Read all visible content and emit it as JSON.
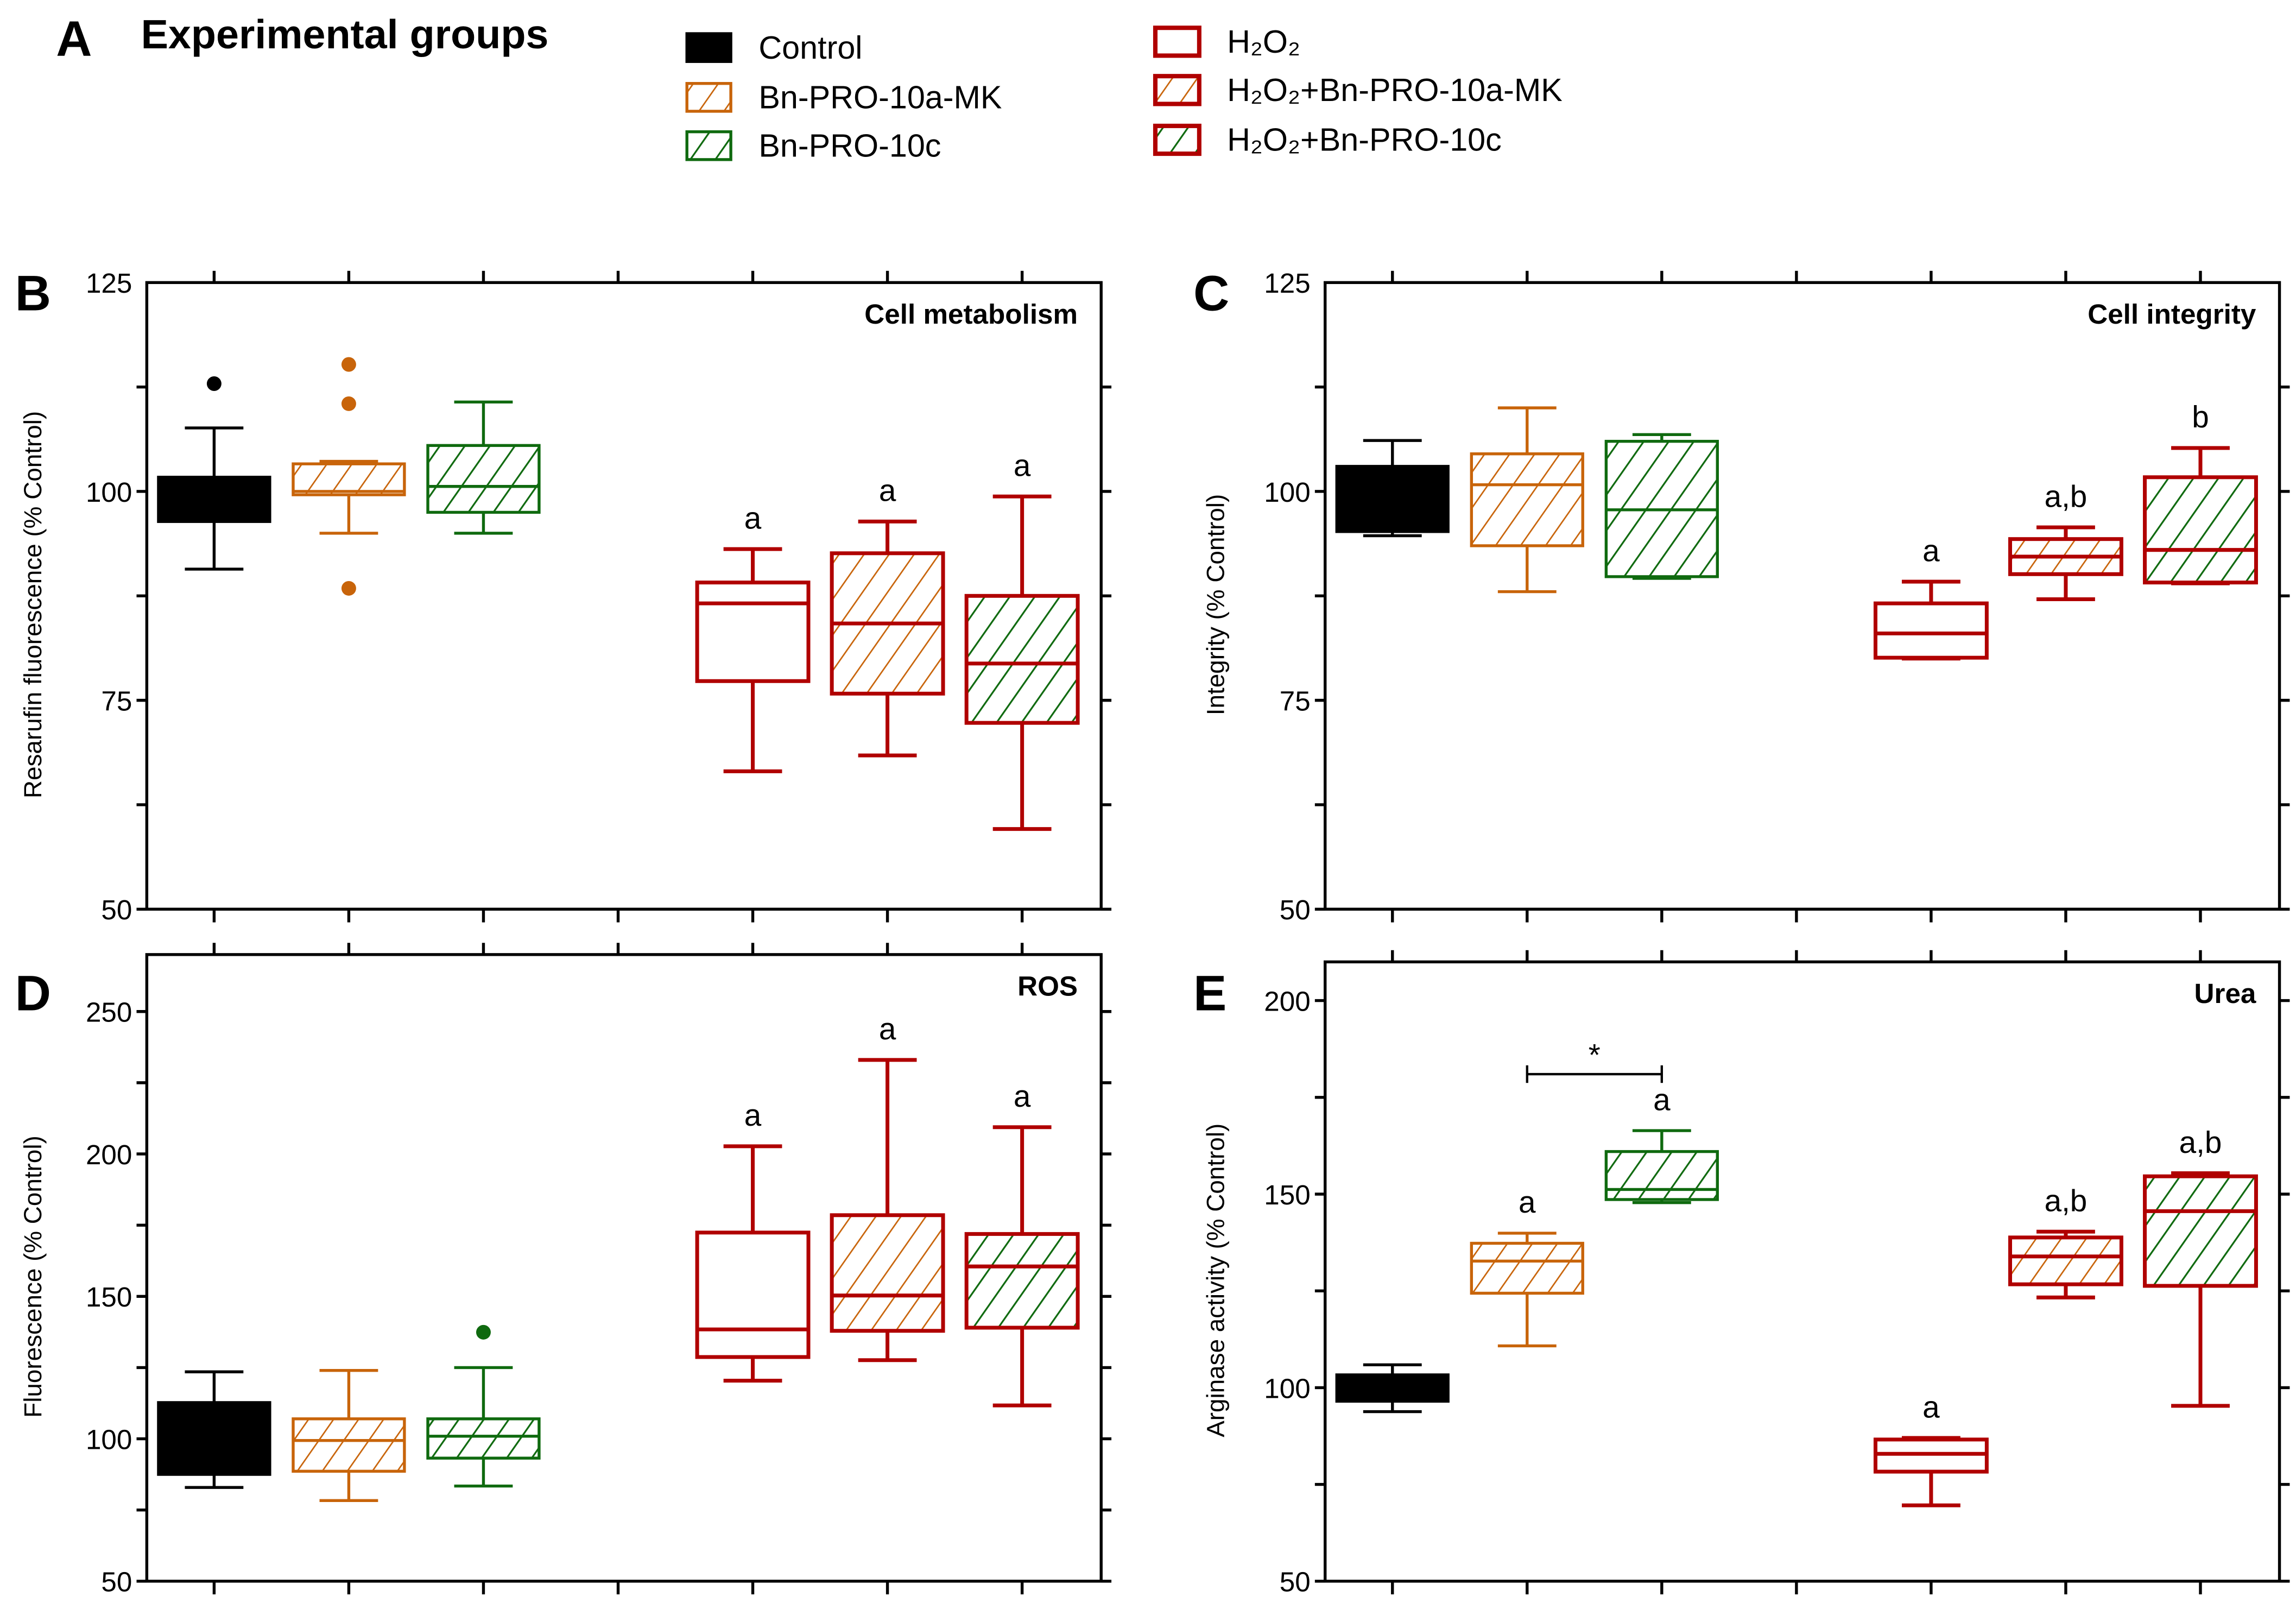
{
  "figure": {
    "panel_a_letter": "A",
    "panel_a_title": "Experimental groups"
  },
  "legend": [
    {
      "label": "Control",
      "fill": "solid",
      "color": "#000000",
      "border": "#000000"
    },
    {
      "label": "Bn-PRO-10a-MK",
      "fill": "hatch",
      "color": "#c8640a",
      "border": "#c8640a"
    },
    {
      "label": "Bn-PRO-10c",
      "fill": "hatch",
      "color": "#0f6a0f",
      "border": "#0f6a0f"
    },
    {
      "label": "H₂O₂",
      "fill": "none",
      "color": "#b00000",
      "border": "#b00000"
    },
    {
      "label": "H₂O₂+Bn-PRO-10a-MK",
      "fill": "hatch",
      "color": "#c8640a",
      "border": "#b00000"
    },
    {
      "label": "H₂O₂+Bn-PRO-10c",
      "fill": "hatch",
      "color": "#0f6a0f",
      "border": "#b00000"
    }
  ],
  "chart_data": [
    {
      "type": "box",
      "panel": "B",
      "title": "Cell metabolism",
      "ylabel": "Resarufin fluorescence (% Control)",
      "ylim": [
        50,
        125
      ],
      "yticks": [
        50,
        75,
        100,
        125
      ],
      "minor_step": 12.5,
      "groups": [
        {
          "name": "Control",
          "whisker_low": 90.7,
          "q1": 96.4,
          "median": 99,
          "q3": 101.7,
          "whisker_high": 107.6,
          "outliers": [
            112.9
          ],
          "label": ""
        },
        {
          "name": "Bn-PRO-10a-MK",
          "whisker_low": 95,
          "q1": 99.6,
          "median": 100,
          "q3": 103.3,
          "whisker_high": 103.6,
          "outliers": [
            115.2,
            110.5,
            88.4
          ],
          "label": ""
        },
        {
          "name": "Bn-PRO-10c",
          "whisker_low": 95,
          "q1": 97.5,
          "median": 100.6,
          "q3": 105.5,
          "whisker_high": 110.7,
          "outliers": [],
          "label": ""
        },
        {
          "name": "H₂O₂",
          "whisker_low": 66.5,
          "q1": 77.3,
          "median": 86.6,
          "q3": 89.1,
          "whisker_high": 93.1,
          "outliers": [],
          "label": "a"
        },
        {
          "name": "H₂O₂+Bn-PRO-10a-MK",
          "whisker_low": 68.4,
          "q1": 75.8,
          "median": 84.2,
          "q3": 92.6,
          "whisker_high": 96.4,
          "outliers": [],
          "label": "a"
        },
        {
          "name": "H₂O₂+Bn-PRO-10c",
          "whisker_low": 59.6,
          "q1": 72.3,
          "median": 79.4,
          "q3": 87.5,
          "whisker_high": 99.4,
          "outliers": [],
          "label": "a"
        }
      ]
    },
    {
      "type": "box",
      "panel": "C",
      "title": "Cell integrity",
      "ylabel": "Integrity (% Control)",
      "ylim": [
        50,
        125
      ],
      "yticks": [
        50,
        75,
        100,
        125
      ],
      "minor_step": 12.5,
      "groups": [
        {
          "name": "Control",
          "whisker_low": 94.7,
          "q1": 95.2,
          "median": 99,
          "q3": 103,
          "whisker_high": 106.1,
          "outliers": [],
          "label": ""
        },
        {
          "name": "Bn-PRO-10a-MK",
          "whisker_low": 88,
          "q1": 93.5,
          "median": 100.8,
          "q3": 104.5,
          "whisker_high": 110,
          "outliers": [],
          "label": ""
        },
        {
          "name": "Bn-PRO-10c",
          "whisker_low": 89.6,
          "q1": 89.8,
          "median": 97.8,
          "q3": 106,
          "whisker_high": 106.8,
          "outliers": [],
          "label": ""
        },
        {
          "name": "H₂O₂",
          "whisker_low": 80,
          "q1": 80.1,
          "median": 83,
          "q3": 86.6,
          "whisker_high": 89.2,
          "outliers": [],
          "label": "a"
        },
        {
          "name": "H₂O₂+Bn-PRO-10a-MK",
          "whisker_low": 87.1,
          "q1": 90.1,
          "median": 92.2,
          "q3": 94.3,
          "whisker_high": 95.7,
          "outliers": [],
          "label": "a,b"
        },
        {
          "name": "H₂O₂+Bn-PRO-10c",
          "whisker_low": 89,
          "q1": 89.1,
          "median": 93,
          "q3": 101.7,
          "whisker_high": 105.2,
          "outliers": [],
          "label": "b"
        }
      ]
    },
    {
      "type": "box",
      "panel": "D",
      "title": "ROS",
      "ylabel": "Fluorescence (% Control)",
      "ylim": [
        50,
        270
      ],
      "yticks": [
        50,
        100,
        150,
        200,
        250
      ],
      "minor_step": 25,
      "groups": [
        {
          "name": "Control",
          "whisker_low": 82.9,
          "q1": 87.5,
          "median": 100,
          "q3": 112.7,
          "whisker_high": 123.5,
          "outliers": [],
          "label": ""
        },
        {
          "name": "Bn-PRO-10a-MK",
          "whisker_low": 78.3,
          "q1": 88.6,
          "median": 99.4,
          "q3": 107,
          "whisker_high": 124,
          "outliers": [],
          "label": ""
        },
        {
          "name": "Bn-PRO-10c",
          "whisker_low": 83.4,
          "q1": 93.2,
          "median": 100.9,
          "q3": 107,
          "whisker_high": 125,
          "outliers": [
            137.4
          ],
          "label": ""
        },
        {
          "name": "H₂O₂",
          "whisker_low": 120.4,
          "q1": 128.7,
          "median": 138.4,
          "q3": 172.4,
          "whisker_high": 202.7,
          "outliers": [],
          "label": "a"
        },
        {
          "name": "H₂O₂+Bn-PRO-10a-MK",
          "whisker_low": 127.6,
          "q1": 137.9,
          "median": 150.3,
          "q3": 178.5,
          "whisker_high": 233,
          "outliers": [],
          "label": "a"
        },
        {
          "name": "H₂O₂+Bn-PRO-10c",
          "whisker_low": 111.7,
          "q1": 139,
          "median": 160.5,
          "q3": 171.9,
          "whisker_high": 209.4,
          "outliers": [],
          "label": "a"
        }
      ]
    },
    {
      "type": "box",
      "panel": "E",
      "title": "Urea",
      "ylabel": "Arginase activity (% Control)",
      "ylim": [
        50,
        210
      ],
      "yticks": [
        50,
        100,
        150,
        200
      ],
      "minor_step": 25,
      "groups": [
        {
          "name": "Control",
          "whisker_low": 93.8,
          "q1": 96.5,
          "median": 100,
          "q3": 103.3,
          "whisker_high": 105.9,
          "outliers": [],
          "label": ""
        },
        {
          "name": "Bn-PRO-10a-MK",
          "whisker_low": 110.8,
          "q1": 124.4,
          "median": 132.7,
          "q3": 137.3,
          "whisker_high": 139.9,
          "outliers": [],
          "label": "a"
        },
        {
          "name": "Bn-PRO-10c",
          "whisker_low": 147.8,
          "q1": 148.6,
          "median": 151.2,
          "q3": 161,
          "whisker_high": 166.4,
          "outliers": [],
          "label": "a"
        },
        {
          "name": "H₂O₂",
          "whisker_low": 69.6,
          "q1": 78.3,
          "median": 82.9,
          "q3": 86.6,
          "whisker_high": 87,
          "outliers": [],
          "label": "a"
        },
        {
          "name": "H₂O₂+Bn-PRO-10a-MK",
          "whisker_low": 123.3,
          "q1": 126.7,
          "median": 133.9,
          "q3": 138.8,
          "whisker_high": 140.3,
          "outliers": [],
          "label": "a,b"
        },
        {
          "name": "H₂O₂+Bn-PRO-10c",
          "whisker_low": 95.3,
          "q1": 126.3,
          "median": 145.6,
          "q3": 154.6,
          "whisker_high": 155.4,
          "outliers": [],
          "label": "a,b"
        }
      ],
      "significance": {
        "from_group": 1,
        "to_group": 2,
        "value": 181,
        "label": "*"
      }
    }
  ]
}
